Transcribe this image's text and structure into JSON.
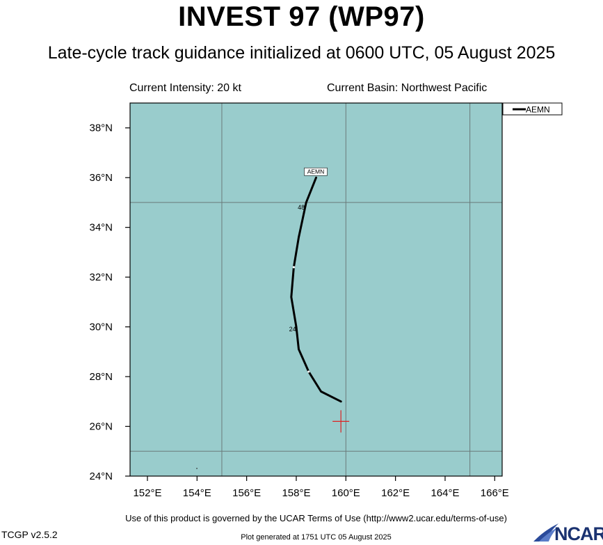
{
  "title": "INVEST 97 (WP97)",
  "subtitle": "Late-cycle track guidance initialized at 0600 UTC, 05 August 2025",
  "info": {
    "intensity": "Current Intensity: 20 kt",
    "basin": "Current Basin: Northwest Pacific"
  },
  "map": {
    "lon_range": [
      151.3,
      166.3
    ],
    "lat_range": [
      24.0,
      39.0
    ],
    "ocean_color": "#99cccc",
    "grid_lons": [
      155,
      160,
      165
    ],
    "grid_lats": [
      25,
      35
    ],
    "x_ticks": [
      152,
      154,
      156,
      158,
      160,
      162,
      164,
      166
    ],
    "x_tick_labels": [
      "152°E",
      "154°E",
      "156°E",
      "158°E",
      "160°E",
      "162°E",
      "164°E",
      "166°E"
    ],
    "y_ticks": [
      24,
      26,
      28,
      30,
      32,
      34,
      36,
      38
    ],
    "y_tick_labels": [
      "24°N",
      "26°N",
      "28°N",
      "30°N",
      "32°N",
      "34°N",
      "36°N",
      "38°N"
    ],
    "current_position": {
      "lon": 159.8,
      "lat": 26.2,
      "color": "#dd2222"
    },
    "tracks": [
      {
        "name": "AEMN",
        "color": "#000000",
        "points": [
          {
            "lon": 159.8,
            "lat": 27.0
          },
          {
            "lon": 159.0,
            "lat": 27.4
          },
          {
            "lon": 158.5,
            "lat": 28.2
          },
          {
            "lon": 158.1,
            "lat": 29.1
          },
          {
            "lon": 158.0,
            "lat": 30.0
          },
          {
            "lon": 157.8,
            "lat": 31.2
          },
          {
            "lon": 157.9,
            "lat": 32.4
          },
          {
            "lon": 158.1,
            "lat": 33.6
          },
          {
            "lon": 158.4,
            "lat": 35.0
          },
          {
            "lon": 158.8,
            "lat": 36.0
          }
        ],
        "white_marks": [
          {
            "lon": 158.5,
            "lat": 28.2
          },
          {
            "lon": 157.9,
            "lat": 32.4
          }
        ],
        "hour_labels": [
          {
            "text": "24",
            "lon": 157.85,
            "lat": 29.9
          },
          {
            "text": "48",
            "lon": 158.2,
            "lat": 34.8
          }
        ],
        "end_label": "AEMN"
      }
    ],
    "island": {
      "lon": 154.0,
      "lat": 24.3
    }
  },
  "legend": {
    "entries": [
      "AEMN"
    ]
  },
  "footer": {
    "terms": "Use of this product is governed by the UCAR Terms of Use (http://www2.ucar.edu/terms-of-use)",
    "version": "TCGP v2.5.2",
    "generated": "Plot generated at 1751 UTC   05 August 2025",
    "logo_text": "NCAR"
  }
}
